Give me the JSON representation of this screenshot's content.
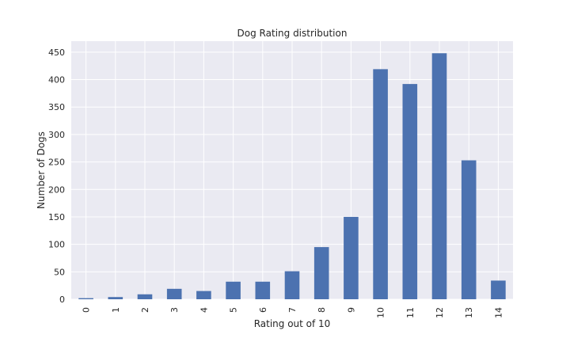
{
  "chart_data": {
    "type": "bar",
    "title": "Dog Rating distribution",
    "xlabel": "Rating out of 10",
    "ylabel": "Number of Dogs",
    "categories": [
      "0",
      "1",
      "2",
      "3",
      "4",
      "5",
      "6",
      "7",
      "8",
      "9",
      "10",
      "11",
      "12",
      "13",
      "14"
    ],
    "values": [
      2,
      4,
      9,
      19,
      15,
      32,
      32,
      51,
      95,
      150,
      419,
      392,
      448,
      253,
      34
    ],
    "ylim": [
      0,
      470
    ],
    "yticks": [
      0,
      50,
      100,
      150,
      200,
      250,
      300,
      350,
      400,
      450
    ],
    "grid": true,
    "legend": "none",
    "colors": {
      "bar": "#4c72b0",
      "plot_background": "#eaeaf2",
      "grid": "#ffffff",
      "text": "#262626"
    }
  }
}
